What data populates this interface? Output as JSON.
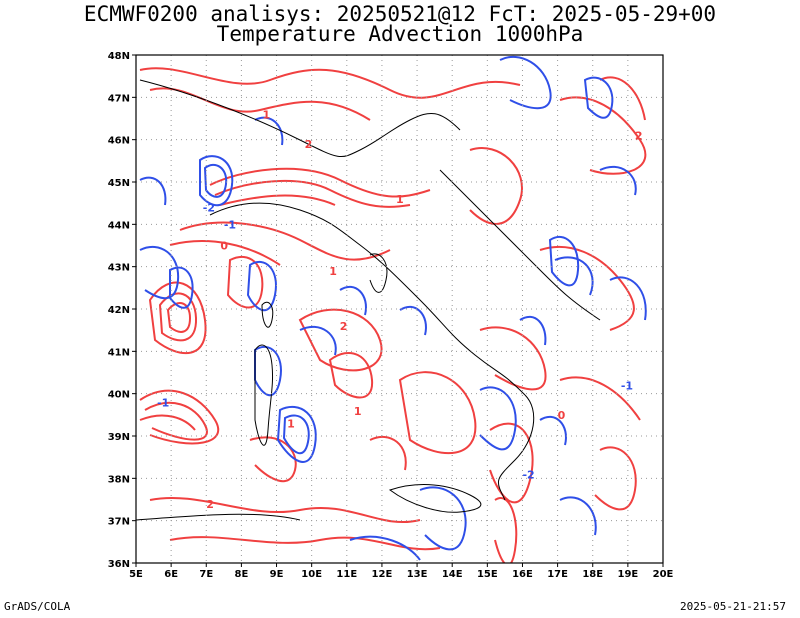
{
  "header": {
    "line1": "ECMWF0200 analisys: 20250521@12 FcT: 2025-05-29+00",
    "line2": "Temperature Advection 1000hPa"
  },
  "map": {
    "lon_range": [
      5,
      20
    ],
    "lat_range": [
      36,
      48
    ],
    "lon_labels": [
      "5E",
      "6E",
      "7E",
      "8E",
      "9E",
      "10E",
      "11E",
      "12E",
      "13E",
      "14E",
      "15E",
      "16E",
      "17E",
      "18E",
      "19E",
      "20E"
    ],
    "lat_labels": [
      "36N",
      "37N",
      "38N",
      "39N",
      "40N",
      "41N",
      "42N",
      "43N",
      "44N",
      "45N",
      "46N",
      "47N",
      "48N"
    ],
    "grid": "dotted",
    "colors": {
      "positive": "#f04040",
      "negative": "#2f4fe8",
      "coast": "#000000"
    },
    "contour_labels": [
      "1",
      "2",
      "-2",
      "-1",
      "0",
      "1",
      "2",
      "-1",
      "1",
      "-2",
      "2",
      "1",
      "0",
      "-1",
      "1",
      "2"
    ]
  },
  "footer": {
    "left": "GrADS/COLA",
    "right": "2025-05-21-21:57"
  }
}
